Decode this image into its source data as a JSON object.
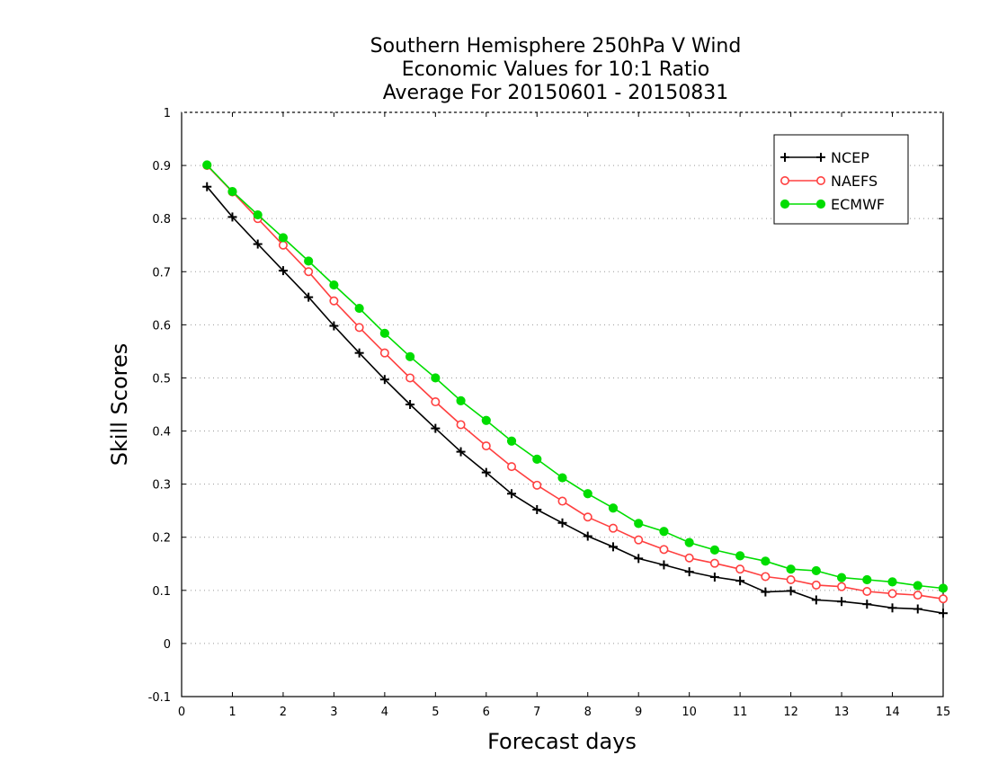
{
  "chart_data": {
    "type": "line",
    "title_lines": [
      "Southern Hemisphere 250hPa V Wind",
      "Economic Values for 10:1 Ratio",
      "Average For 20150601 - 20150831"
    ],
    "xlabel": "Forecast days",
    "ylabel": "Skill Scores",
    "xlim": [
      0,
      15
    ],
    "ylim": [
      -0.1,
      1
    ],
    "xticks": [
      "0",
      "1",
      "2",
      "3",
      "4",
      "5",
      "6",
      "7",
      "8",
      "9",
      "10",
      "11",
      "12",
      "13",
      "14",
      "15"
    ],
    "yticks": [
      "-0.1",
      "0",
      "0.1",
      "0.2",
      "0.3",
      "0.4",
      "0.5",
      "0.6",
      "0.7",
      "0.8",
      "0.9",
      "1"
    ],
    "grid": "horizontal dotted",
    "legend_position": "top-right",
    "x": [
      0.5,
      1,
      1.5,
      2,
      2.5,
      3,
      3.5,
      4,
      4.5,
      5,
      5.5,
      6,
      6.5,
      7,
      7.5,
      8,
      8.5,
      9,
      9.5,
      10,
      10.5,
      11,
      11.5,
      12,
      12.5,
      13,
      13.5,
      14,
      14.5,
      15
    ],
    "series": [
      {
        "name": "NCEP",
        "color": "#000000",
        "marker": "plus",
        "values": [
          0.86,
          0.803,
          0.752,
          0.702,
          0.652,
          0.598,
          0.547,
          0.497,
          0.45,
          0.405,
          0.361,
          0.322,
          0.282,
          0.252,
          0.227,
          0.202,
          0.182,
          0.16,
          0.148,
          0.135,
          0.125,
          0.118,
          0.097,
          0.099,
          0.082,
          0.079,
          0.074,
          0.067,
          0.065,
          0.057
        ]
      },
      {
        "name": "NAEFS",
        "color": "#ff4040",
        "marker": "open-circle",
        "values": [
          0.9,
          0.85,
          0.8,
          0.75,
          0.7,
          0.645,
          0.595,
          0.547,
          0.5,
          0.455,
          0.412,
          0.372,
          0.333,
          0.298,
          0.268,
          0.238,
          0.217,
          0.195,
          0.177,
          0.161,
          0.151,
          0.14,
          0.126,
          0.12,
          0.11,
          0.107,
          0.098,
          0.094,
          0.091,
          0.084
        ]
      },
      {
        "name": "ECMWF",
        "color": "#00dd00",
        "marker": "filled-circle",
        "values": [
          0.901,
          0.851,
          0.807,
          0.764,
          0.72,
          0.675,
          0.631,
          0.584,
          0.54,
          0.5,
          0.457,
          0.42,
          0.381,
          0.347,
          0.312,
          0.282,
          0.255,
          0.226,
          0.211,
          0.19,
          0.176,
          0.165,
          0.155,
          0.14,
          0.137,
          0.124,
          0.12,
          0.116,
          0.109,
          0.104
        ]
      }
    ]
  }
}
